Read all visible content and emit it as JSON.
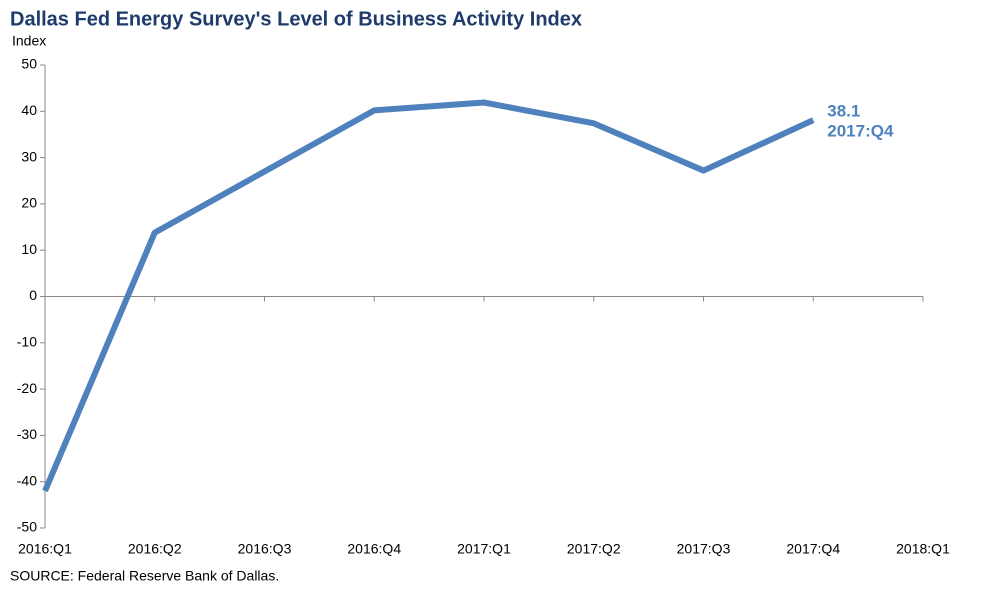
{
  "chart_data": {
    "type": "line",
    "title": "Dallas Fed Energy Survey's Level of Business Activity Index",
    "y_label": "Index",
    "source": "SOURCE:  Federal Reserve  Bank of Dallas.",
    "categories": [
      "2016:Q1",
      "2016:Q2",
      "2016:Q3",
      "2016:Q4",
      "2017:Q1",
      "2017:Q2",
      "2017:Q3",
      "2017:Q4",
      "2018:Q1"
    ],
    "series": [
      {
        "name": "Level of Business Activity Index",
        "color": "#4f81bd",
        "values": [
          -42,
          13.8,
          27,
          40.2,
          41.9,
          37.4,
          27.2,
          38.1,
          null
        ]
      }
    ],
    "annotations": [
      "38.1",
      "2017:Q4"
    ],
    "ylim": [
      -50,
      50
    ],
    "yticks": [
      -50,
      -40,
      -30,
      -20,
      -10,
      0,
      10,
      20,
      30,
      40,
      50
    ],
    "grid": false
  }
}
